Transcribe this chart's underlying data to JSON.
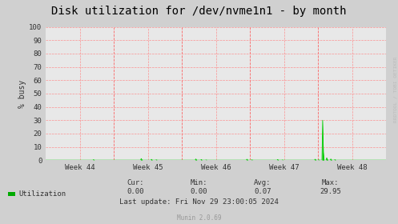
{
  "title": "Disk utilization for /dev/nvme1n1 - by month",
  "ylabel": "% busy",
  "background_color": "#d0d0d0",
  "plot_bg_color": "#e8e8e8",
  "grid_color": "#ff8888",
  "line_color": "#00cc00",
  "fill_color": "#00cc00",
  "week_labels": [
    "Week 44",
    "Week 45",
    "Week 46",
    "Week 47",
    "Week 48"
  ],
  "ylim": [
    0,
    100
  ],
  "yticks": [
    0,
    10,
    20,
    30,
    40,
    50,
    60,
    70,
    80,
    90,
    100
  ],
  "legend_label": "Utilization",
  "legend_color": "#00aa00",
  "cur_val": "0.00",
  "min_val": "0.00",
  "avg_val": "0.07",
  "max_val": "29.95",
  "last_update": "Last update: Fri Nov 29 23:00:05 2024",
  "munin_version": "Munin 2.0.69",
  "rrdtool_label": "RRDTOOL / TOBI OETIKER",
  "title_fontsize": 10,
  "axis_label_fontsize": 7,
  "tick_fontsize": 6.5,
  "footer_fontsize": 6.5,
  "num_points": 500,
  "spike_positions": [
    70,
    140,
    155,
    162,
    220,
    228,
    235,
    295,
    302,
    340,
    347,
    395,
    400,
    406,
    412,
    418,
    424
  ],
  "spike_heights": [
    0.4,
    1.2,
    0.6,
    0.3,
    0.9,
    0.5,
    0.2,
    0.7,
    0.3,
    0.5,
    0.2,
    0.7,
    0.3,
    29.95,
    1.8,
    0.9,
    0.4
  ]
}
